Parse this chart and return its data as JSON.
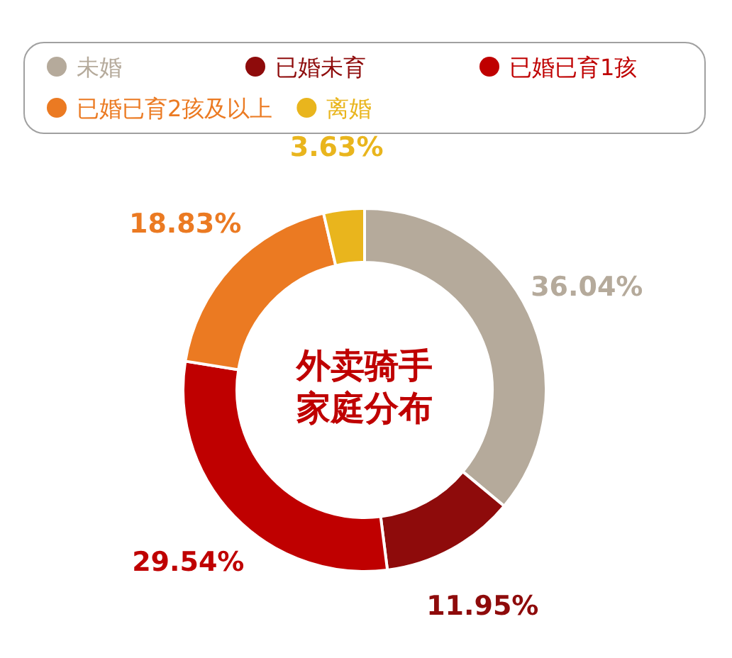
{
  "chart_data": {
    "type": "donut",
    "title": "外卖骑手家庭分布",
    "categories": [
      "未婚",
      "已婚未育",
      "已婚已育1孩",
      "已婚已育2孩及以上",
      "离婚"
    ],
    "values": [
      36.04,
      11.95,
      29.54,
      18.83,
      3.63
    ],
    "value_labels": [
      "36.04%",
      "11.95%",
      "29.54%",
      "18.83%",
      "3.63%"
    ],
    "colors": [
      "#b5aa9b",
      "#8e0b0b",
      "#bf0000",
      "#eb7a22",
      "#e9b51d"
    ],
    "legend": "top"
  }
}
